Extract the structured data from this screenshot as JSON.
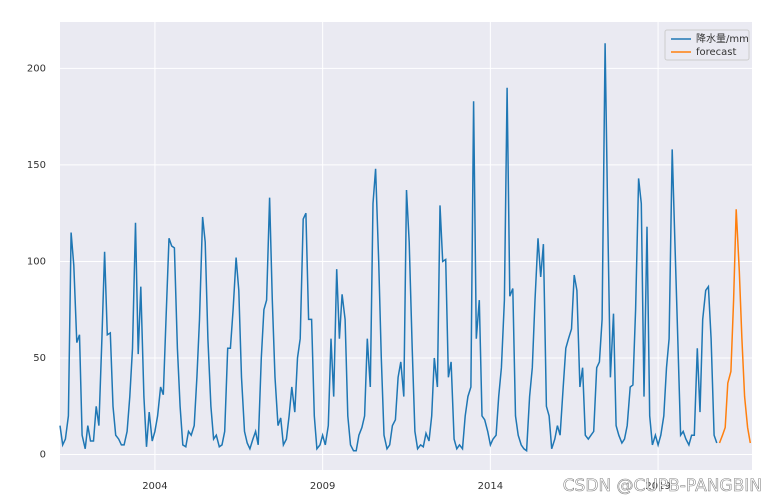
{
  "chart_data": {
    "type": "line",
    "xlim": [
      2001.17,
      2021.8
    ],
    "xticks": [
      2004,
      2009,
      2014,
      2019
    ],
    "ylim": [
      -8,
      224
    ],
    "yticks": [
      0,
      50,
      100,
      150,
      200
    ],
    "grid": true,
    "legend": "upper right",
    "watermark": "CSDN @CUPB-PANGBIN",
    "series": [
      {
        "name": "降水量/mm",
        "color": "#1f77b4",
        "x": [
          2001.17,
          2001.25,
          2001.33,
          2001.42,
          2001.5,
          2001.58,
          2001.67,
          2001.75,
          2001.83,
          2001.92,
          2002,
          2002.08,
          2002.17,
          2002.25,
          2002.33,
          2002.42,
          2002.5,
          2002.58,
          2002.67,
          2002.75,
          2002.83,
          2002.92,
          2003,
          2003.08,
          2003.17,
          2003.25,
          2003.33,
          2003.42,
          2003.5,
          2003.58,
          2003.67,
          2003.75,
          2003.83,
          2003.92,
          2004,
          2004.08,
          2004.17,
          2004.25,
          2004.33,
          2004.42,
          2004.5,
          2004.58,
          2004.67,
          2004.75,
          2004.83,
          2004.92,
          2005,
          2005.08,
          2005.17,
          2005.25,
          2005.33,
          2005.42,
          2005.5,
          2005.58,
          2005.67,
          2005.75,
          2005.83,
          2005.92,
          2006,
          2006.08,
          2006.17,
          2006.25,
          2006.33,
          2006.42,
          2006.5,
          2006.58,
          2006.67,
          2006.75,
          2006.83,
          2006.92,
          2007,
          2007.08,
          2007.17,
          2007.25,
          2007.33,
          2007.42,
          2007.5,
          2007.58,
          2007.67,
          2007.75,
          2007.83,
          2007.92,
          2008,
          2008.08,
          2008.17,
          2008.25,
          2008.33,
          2008.42,
          2008.5,
          2008.58,
          2008.67,
          2008.75,
          2008.83,
          2008.92,
          2009,
          2009.08,
          2009.17,
          2009.25,
          2009.33,
          2009.42,
          2009.5,
          2009.58,
          2009.67,
          2009.75,
          2009.83,
          2009.92,
          2010,
          2010.08,
          2010.17,
          2010.25,
          2010.33,
          2010.42,
          2010.5,
          2010.58,
          2010.67,
          2010.75,
          2010.83,
          2010.92,
          2011,
          2011.08,
          2011.17,
          2011.25,
          2011.33,
          2011.42,
          2011.5,
          2011.58,
          2011.67,
          2011.75,
          2011.83,
          2011.92,
          2012,
          2012.08,
          2012.17,
          2012.25,
          2012.33,
          2012.42,
          2012.5,
          2012.58,
          2012.67,
          2012.75,
          2012.83,
          2012.92,
          2013,
          2013.08,
          2013.17,
          2013.25,
          2013.33,
          2013.42,
          2013.5,
          2013.58,
          2013.67,
          2013.75,
          2013.83,
          2013.92,
          2014,
          2014.08,
          2014.17,
          2014.25,
          2014.33,
          2014.42,
          2014.5,
          2014.58,
          2014.67,
          2014.75,
          2014.83,
          2014.92,
          2015,
          2015.08,
          2015.17,
          2015.25,
          2015.33,
          2015.42,
          2015.5,
          2015.58,
          2015.67,
          2015.75,
          2015.83,
          2015.92,
          2016,
          2016.08,
          2016.17,
          2016.25,
          2016.33,
          2016.42,
          2016.5,
          2016.58,
          2016.67,
          2016.75,
          2016.83,
          2016.92,
          2017,
          2017.08,
          2017.17,
          2017.25,
          2017.33,
          2017.42,
          2017.5,
          2017.58,
          2017.67,
          2017.75,
          2017.83,
          2017.92,
          2018,
          2018.08,
          2018.17,
          2018.25,
          2018.33,
          2018.42,
          2018.5,
          2018.58,
          2018.67,
          2018.75,
          2018.83,
          2018.92,
          2019,
          2019.08,
          2019.17,
          2019.25,
          2019.33,
          2019.42,
          2019.5,
          2019.58,
          2019.67,
          2019.75,
          2019.83,
          2019.92,
          2020,
          2020.08,
          2020.17,
          2020.25,
          2020.33,
          2020.42,
          2020.5,
          2020.58,
          2020.67,
          2020.75
        ],
        "values": [
          15,
          5,
          8,
          20,
          115,
          98,
          58,
          62,
          10,
          3,
          15,
          7,
          7,
          25,
          15,
          60,
          105,
          62,
          63,
          25,
          10,
          8,
          5,
          5,
          12,
          30,
          55,
          120,
          52,
          87,
          30,
          4,
          22,
          7,
          12,
          20,
          35,
          31,
          70,
          112,
          108,
          107,
          55,
          25,
          5,
          4,
          12,
          10,
          15,
          40,
          70,
          123,
          110,
          60,
          25,
          8,
          10,
          4,
          5,
          12,
          55,
          55,
          75,
          102,
          85,
          40,
          12,
          6,
          3,
          8,
          12,
          5,
          50,
          75,
          80,
          133,
          80,
          40,
          15,
          19,
          5,
          8,
          20,
          35,
          22,
          50,
          60,
          122,
          125,
          70,
          70,
          20,
          3,
          5,
          10,
          5,
          15,
          60,
          30,
          96,
          60,
          83,
          70,
          20,
          5,
          2,
          2,
          10,
          14,
          20,
          60,
          35,
          130,
          148,
          100,
          50,
          10,
          3,
          5,
          15,
          18,
          40,
          48,
          30,
          137,
          110,
          55,
          12,
          3,
          5,
          4,
          11,
          7,
          20,
          50,
          35,
          129,
          100,
          101,
          40,
          48,
          8,
          3,
          5,
          3,
          20,
          30,
          35,
          183,
          60,
          80,
          20,
          18,
          12,
          5,
          8,
          10,
          30,
          45,
          80,
          190,
          82,
          86,
          20,
          10,
          5,
          3,
          2,
          30,
          45,
          80,
          112,
          92,
          109,
          25,
          20,
          3,
          8,
          15,
          10,
          35,
          55,
          60,
          65,
          93,
          85,
          35,
          45,
          10,
          8,
          10,
          12,
          45,
          48,
          70,
          213,
          120,
          40,
          73,
          15,
          10,
          6,
          8,
          15,
          35,
          36,
          75,
          143,
          130,
          30,
          118,
          20,
          5,
          10,
          5,
          10,
          20,
          45,
          60,
          158,
          110,
          65,
          10,
          12,
          8,
          5,
          10,
          10,
          55,
          22,
          70,
          85,
          87,
          60,
          10,
          6
        ]
      },
      {
        "name": "forecast",
        "color": "#ff7f0e",
        "x": [
          2020.83,
          2020.92,
          2021,
          2021.08,
          2021.17,
          2021.25,
          2021.33,
          2021.42,
          2021.5,
          2021.58,
          2021.67,
          2021.75
        ],
        "values": [
          6,
          10,
          14,
          37,
          43,
          80,
          127,
          95,
          60,
          30,
          14,
          6
        ]
      }
    ]
  }
}
